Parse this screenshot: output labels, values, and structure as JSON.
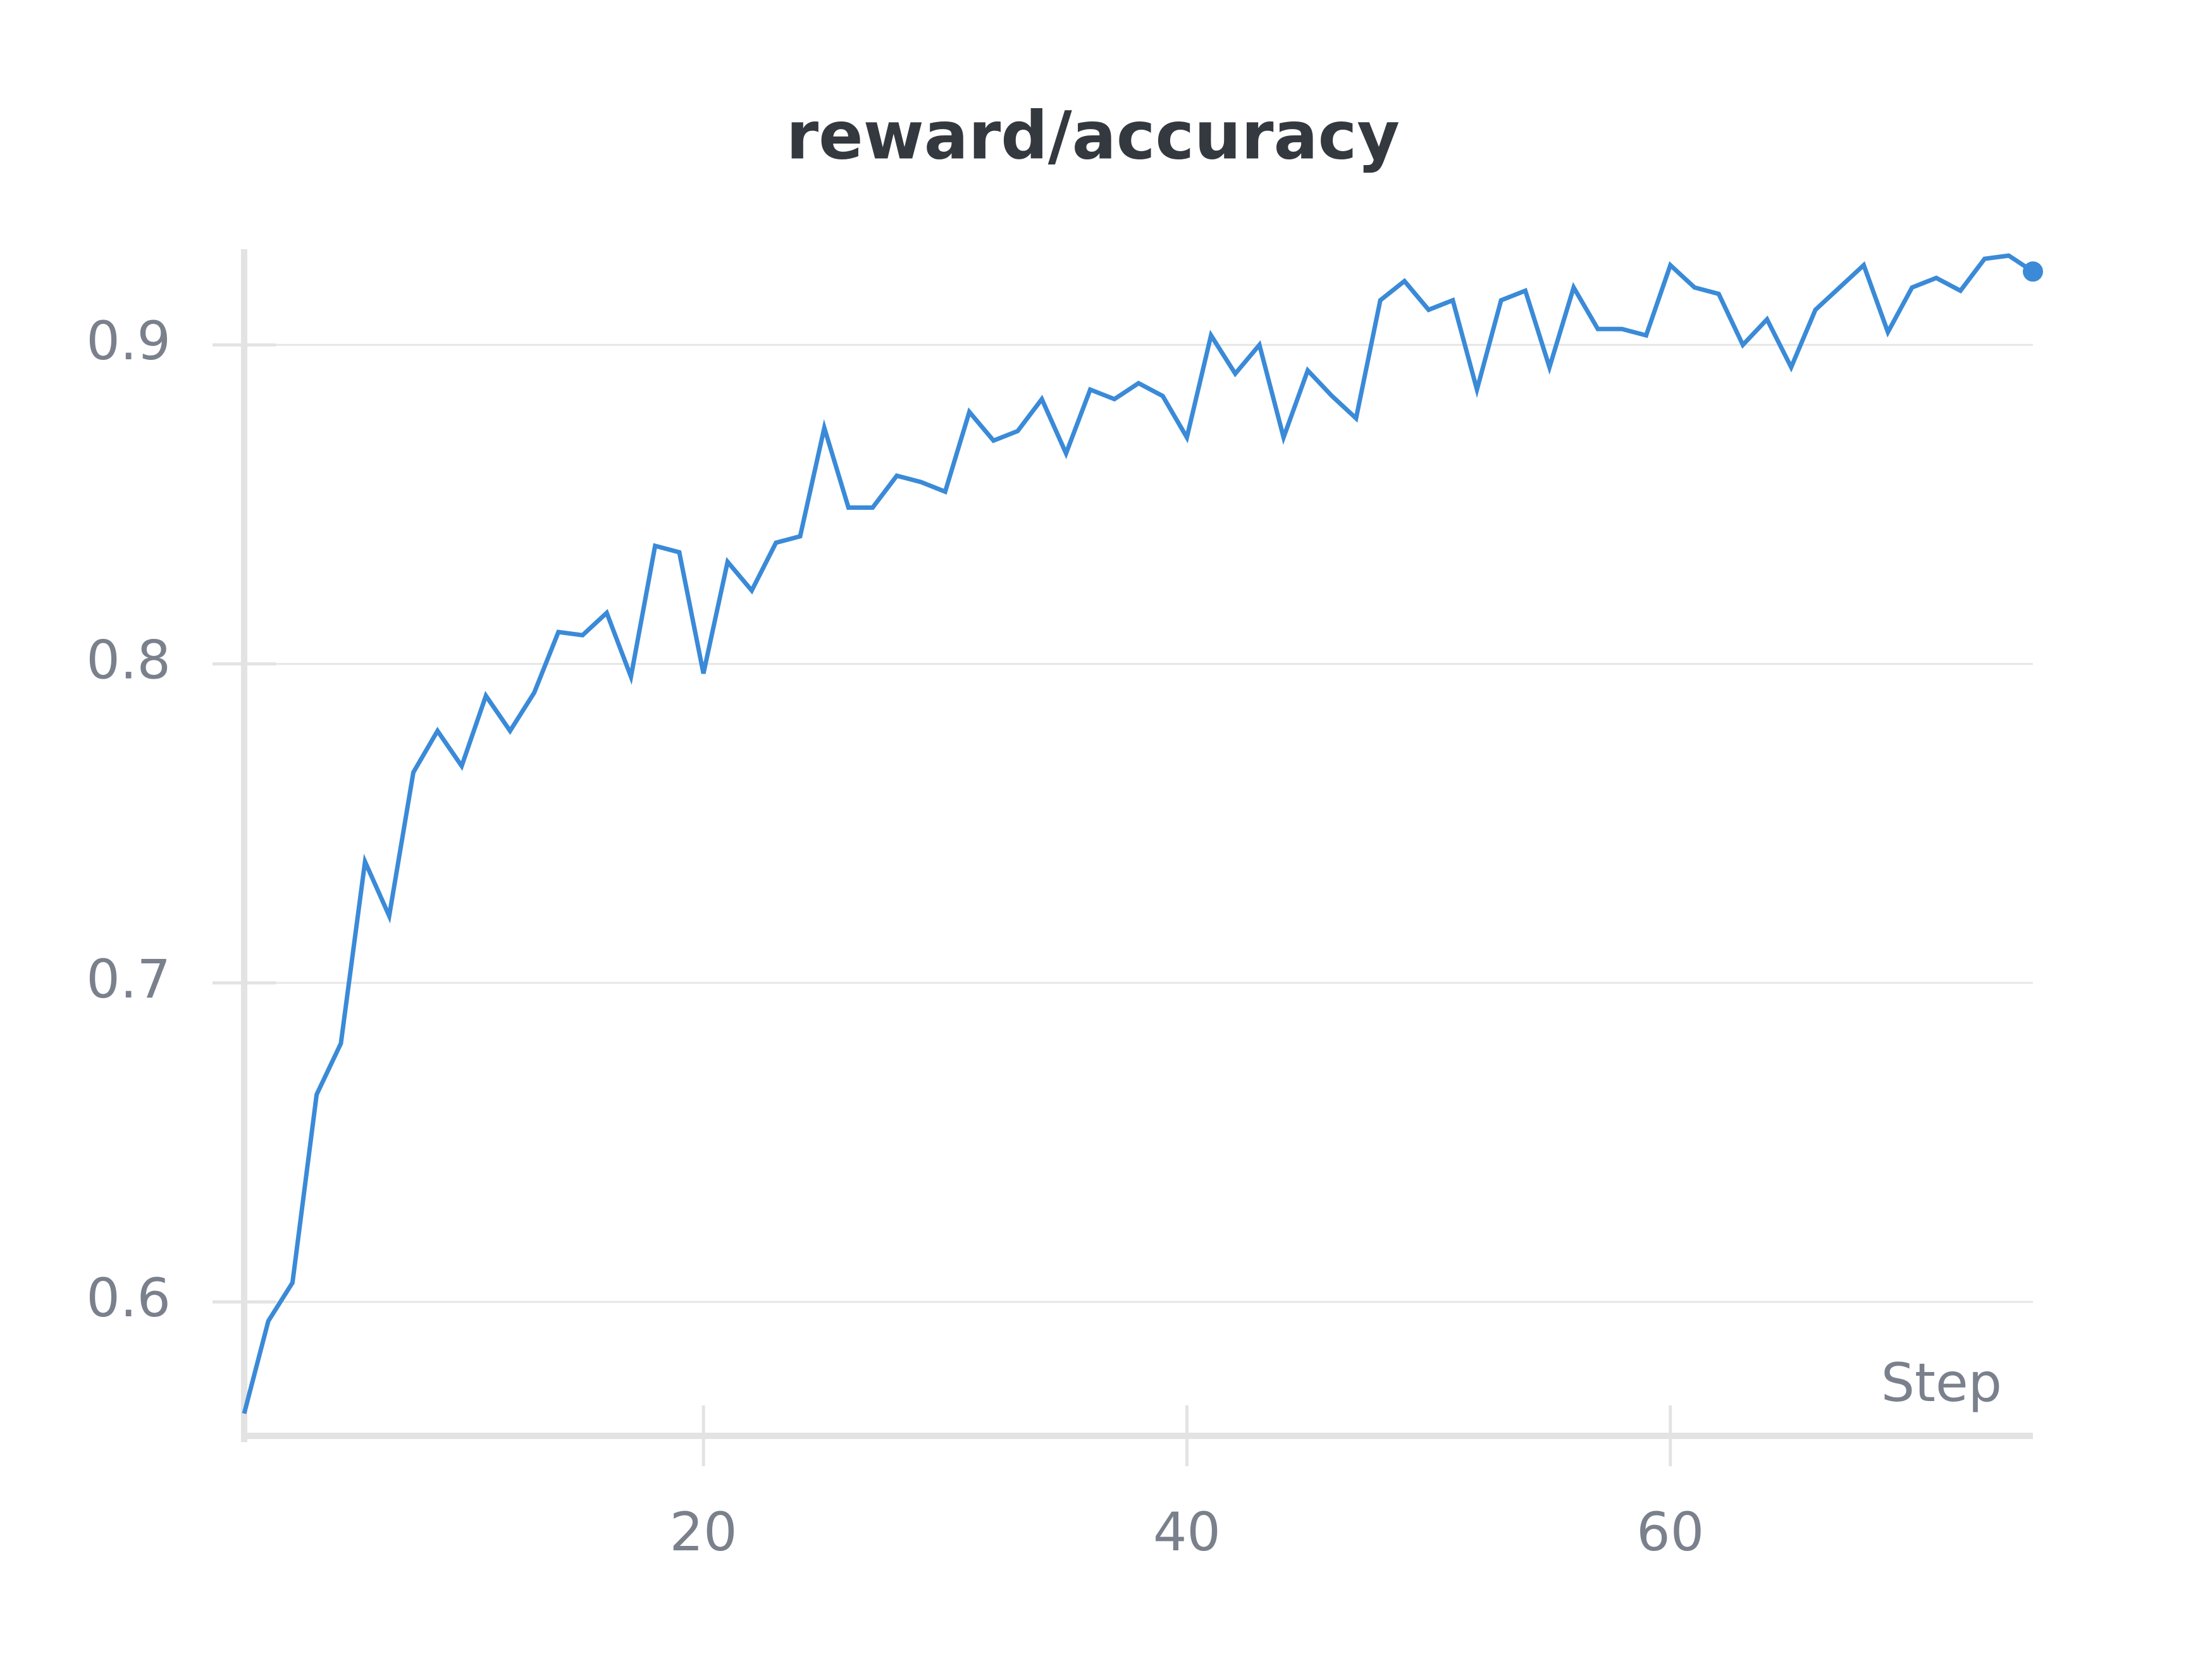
{
  "chart_data": {
    "type": "line",
    "title": "reward/accuracy",
    "x_label": "Step",
    "x": [
      1,
      2,
      3,
      4,
      5,
      6,
      7,
      8,
      9,
      10,
      11,
      12,
      13,
      14,
      15,
      16,
      17,
      18,
      19,
      20,
      21,
      22,
      23,
      24,
      25,
      26,
      27,
      28,
      29,
      30,
      31,
      32,
      33,
      34,
      35,
      36,
      37,
      38,
      39,
      40,
      41,
      42,
      43,
      44,
      45,
      46,
      47,
      48,
      49,
      50,
      51,
      52,
      53,
      54,
      55,
      56,
      57,
      58,
      59,
      60,
      61,
      62,
      63,
      64,
      65,
      66,
      67,
      68,
      69,
      70,
      71,
      72,
      73,
      74,
      75
    ],
    "values": [
      0.565,
      0.594,
      0.606,
      0.665,
      0.681,
      0.738,
      0.721,
      0.766,
      0.779,
      0.768,
      0.79,
      0.779,
      0.791,
      0.81,
      0.809,
      0.816,
      0.796,
      0.837,
      0.835,
      0.797,
      0.832,
      0.823,
      0.838,
      0.84,
      0.874,
      0.849,
      0.849,
      0.859,
      0.857,
      0.854,
      0.879,
      0.87,
      0.873,
      0.883,
      0.866,
      0.886,
      0.883,
      0.888,
      0.884,
      0.871,
      0.903,
      0.891,
      0.9,
      0.871,
      0.892,
      0.884,
      0.877,
      0.914,
      0.92,
      0.911,
      0.914,
      0.886,
      0.914,
      0.917,
      0.893,
      0.918,
      0.905,
      0.905,
      0.903,
      0.925,
      0.918,
      0.916,
      0.9,
      0.908,
      0.893,
      0.911,
      0.918,
      0.925,
      0.904,
      0.918,
      0.921,
      0.917,
      0.927,
      0.928,
      0.923
    ],
    "color": "#3a8ad8",
    "xlim": [
      1,
      75
    ],
    "xticks": [
      20,
      40,
      60
    ],
    "ylim": [
      0.558,
      0.93
    ],
    "yticks": [
      0.6,
      0.7,
      0.8,
      0.9
    ],
    "grid": true
  }
}
